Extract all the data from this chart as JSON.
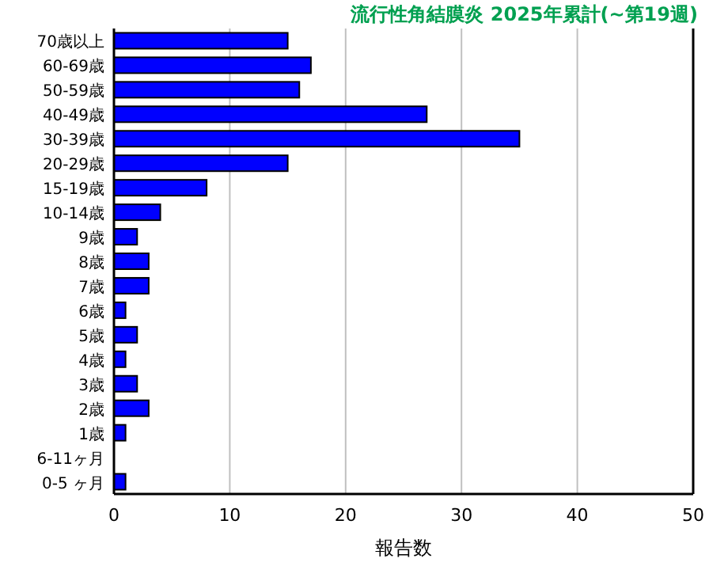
{
  "chart_data": {
    "type": "bar",
    "orientation": "horizontal",
    "title": "流行性角結膜炎 2025年累計(~第19週)",
    "xlabel": "報告数",
    "categories": [
      "70歳以上",
      "60-69歳",
      "50-59歳",
      "40-49歳",
      "30-39歳",
      "20-29歳",
      "15-19歳",
      "10-14歳",
      "9歳",
      "8歳",
      "7歳",
      "6歳",
      "5歳",
      "4歳",
      "3歳",
      "2歳",
      "1歳",
      "6-11ヶ月",
      "0-5 ヶ月"
    ],
    "values": [
      15,
      17,
      16,
      27,
      35,
      15,
      8,
      4,
      2,
      3,
      3,
      1,
      2,
      1,
      2,
      3,
      1,
      0,
      1
    ],
    "color": "#0000ff",
    "xlim": [
      0,
      50
    ],
    "xticks": [
      0,
      10,
      20,
      30,
      40,
      50
    ],
    "grid": "x"
  }
}
